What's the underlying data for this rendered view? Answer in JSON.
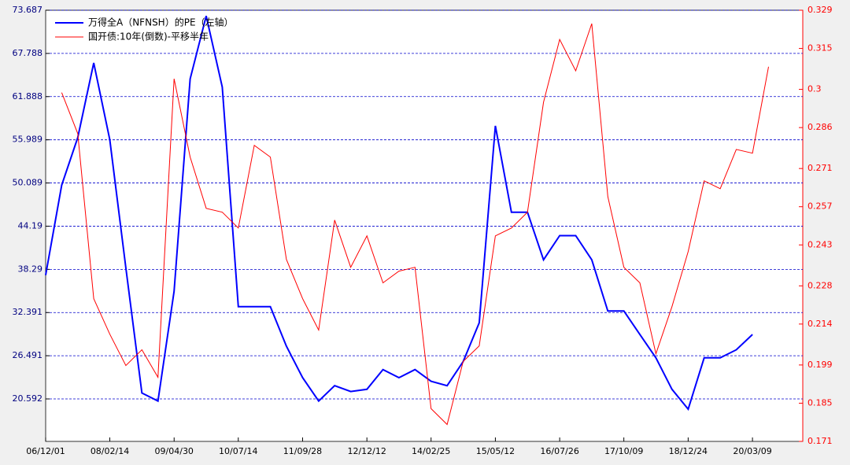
{
  "chart_data": {
    "type": "line",
    "x": [
      "06/12/01",
      "07/03/21",
      "07/07/09",
      "07/10/27",
      "08/02/14",
      "08/06/03",
      "08/09/21",
      "09/01/09",
      "09/04/30",
      "09/08/18",
      "09/12/06",
      "10/03/26",
      "10/07/14",
      "10/11/01",
      "11/02/19",
      "11/06/09",
      "11/09/28",
      "12/01/16",
      "12/05/05",
      "12/08/23",
      "12/12/12",
      "13/04/01",
      "13/07/20",
      "13/11/07",
      "14/02/25",
      "14/06/15",
      "14/10/03",
      "15/01/21",
      "15/05/12",
      "15/08/30",
      "15/12/18",
      "16/04/06",
      "16/07/26",
      "16/11/13",
      "17/03/03",
      "17/06/21",
      "17/10/09",
      "18/01/27",
      "18/05/17",
      "18/09/04",
      "18/12/24",
      "19/04/13",
      "19/08/01",
      "19/11/19",
      "20/03/09",
      "20/06/27"
    ],
    "xlim": [
      "06/12/01",
      "21/02/17"
    ],
    "xticks": [
      "06/12/01",
      "08/02/14",
      "09/04/30",
      "10/07/14",
      "11/09/28",
      "12/12/12",
      "14/02/25",
      "15/05/12",
      "16/07/26",
      "17/10/09",
      "18/12/24",
      "20/03/09"
    ],
    "ylim": [
      14.79,
      73.687
    ],
    "yticks": [
      20.592,
      26.491,
      32.391,
      38.29,
      44.19,
      50.089,
      55.989,
      61.888,
      67.788,
      73.687
    ],
    "y2lim": [
      0.171,
      0.329
    ],
    "y2ticks": [
      0.171,
      0.185,
      0.199,
      0.214,
      0.228,
      0.243,
      0.257,
      0.271,
      0.286,
      0.3,
      0.315,
      0.329
    ],
    "grid": true,
    "legend": "upper left",
    "series": [
      {
        "name": "万得全A（NFNSH）的PE（左轴）",
        "color": "#0000ff",
        "axis": "y",
        "values": [
          37.5,
          49.8,
          56.3,
          66.5,
          56,
          38.5,
          21.4,
          20.3,
          35.3,
          64.3,
          72.9,
          63.2,
          33.2,
          33.2,
          33.2,
          27.8,
          23.5,
          20.3,
          22.4,
          21.6,
          21.9,
          24.6,
          23.5,
          24.6,
          23.0,
          22.4,
          25.7,
          31.0,
          57.9,
          46.1,
          46.1,
          39.6,
          42.9,
          42.9,
          39.6,
          32.6,
          32.6,
          29.4,
          26.2,
          21.9,
          19.2,
          26.2,
          26.2,
          27.3,
          29.4,
          null
        ]
      },
      {
        "name": "国开债:10年(倒数)-平移半年",
        "color": "#ff0000",
        "axis": "y2",
        "values": [
          null,
          0.2988,
          0.2838,
          0.2233,
          0.2103,
          0.1988,
          0.2046,
          0.1945,
          0.3039,
          0.2752,
          0.2564,
          0.255,
          0.2492,
          0.2795,
          0.2752,
          0.2377,
          0.2233,
          0.2118,
          0.2521,
          0.2348,
          0.2463,
          0.2291,
          0.2334,
          0.2348,
          0.183,
          0.1772,
          0.2003,
          0.206,
          0.2463,
          0.2492,
          0.255,
          0.2953,
          0.3183,
          0.3068,
          0.3241,
          0.2607,
          0.2348,
          0.2291,
          0.2031,
          0.2204,
          0.2406,
          0.2665,
          0.2636,
          0.278,
          0.2766,
          0.3083
        ]
      }
    ]
  }
}
